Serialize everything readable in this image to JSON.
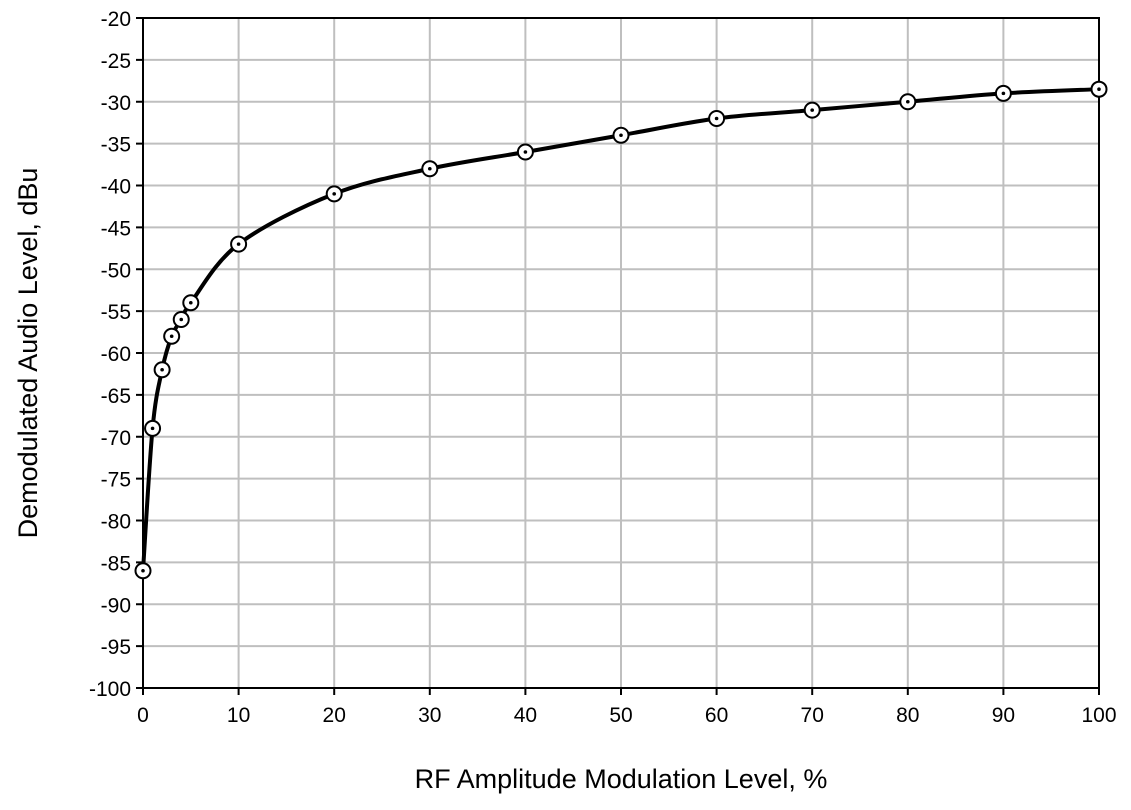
{
  "chart_data": {
    "type": "line",
    "title": "",
    "xlabel": "RF Amplitude Modulation Level, %",
    "ylabel": "Demodulated Audio Level, dBu",
    "xlim": [
      0,
      100
    ],
    "ylim": [
      -100,
      -20
    ],
    "xticks": [
      0,
      10,
      20,
      30,
      40,
      50,
      60,
      70,
      80,
      90,
      100
    ],
    "yticks": [
      -20,
      -25,
      -30,
      -35,
      -40,
      -45,
      -50,
      -55,
      -60,
      -65,
      -70,
      -75,
      -80,
      -85,
      -90,
      -95,
      -100
    ],
    "xtick_labels": [
      "0",
      "10",
      "20",
      "30",
      "40",
      "50",
      "60",
      "70",
      "80",
      "90",
      "100"
    ],
    "ytick_labels": [
      "-20",
      "-25",
      "-30",
      "-35",
      "-40",
      "-45",
      "-50",
      "-55",
      "-60",
      "-65",
      "-70",
      "-75",
      "-80",
      "-85",
      "-90",
      "-95",
      "-100"
    ],
    "grid": true,
    "legend": "none",
    "marker": "circle-with-center-dot",
    "line_color": "#000000",
    "grid_color": "#bfbfbf",
    "series": [
      {
        "x": [
          0,
          1,
          2,
          3,
          4,
          5,
          10,
          20,
          30,
          40,
          50,
          60,
          70,
          80,
          90,
          100
        ],
        "y": [
          -86,
          -69,
          -62,
          -58,
          -56,
          -54,
          -47,
          -41,
          -38,
          -36,
          -34,
          -32,
          -31,
          -30,
          -29,
          -28.5
        ]
      }
    ]
  }
}
